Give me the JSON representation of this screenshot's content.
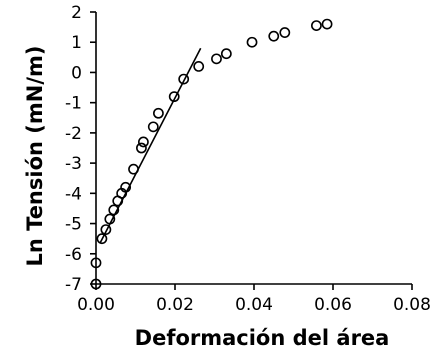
{
  "chart_data": {
    "type": "scatter",
    "xlabel": "Deformación del área",
    "ylabel": "Ln Tensión (mN/m)",
    "xlim": [
      0,
      0.08
    ],
    "ylim": [
      -7,
      2
    ],
    "x_ticks": [
      0,
      0.02,
      0.04,
      0.06,
      0.08
    ],
    "x_tick_labels": [
      "0.00",
      "0.02",
      "0.04",
      "0.06",
      "0.08"
    ],
    "y_ticks": [
      -7,
      -6,
      -5,
      -4,
      -3,
      -2,
      -1,
      0,
      1,
      2
    ],
    "y_tick_labels": [
      "-7",
      "-6",
      "-5",
      "-4",
      "-3",
      "-2",
      "-1",
      "0",
      "1",
      "2"
    ],
    "grid": false,
    "legend": false,
    "series": [
      {
        "type": "scatter",
        "marker": "open-circle",
        "points": [
          [
            0.0,
            -7.0
          ],
          [
            0.0,
            -6.3
          ],
          [
            0.0015,
            -5.5
          ],
          [
            0.0025,
            -5.2
          ],
          [
            0.0035,
            -4.85
          ],
          [
            0.0045,
            -4.55
          ],
          [
            0.0055,
            -4.25
          ],
          [
            0.0065,
            -4.0
          ],
          [
            0.0075,
            -3.8
          ],
          [
            0.0095,
            -3.2
          ],
          [
            0.0115,
            -2.5
          ],
          [
            0.012,
            -2.3
          ],
          [
            0.0145,
            -1.8
          ],
          [
            0.0158,
            -1.35
          ],
          [
            0.0198,
            -0.8
          ],
          [
            0.0222,
            -0.22
          ],
          [
            0.026,
            0.2
          ],
          [
            0.0305,
            0.45
          ],
          [
            0.033,
            0.62
          ],
          [
            0.0395,
            1.0
          ],
          [
            0.045,
            1.2
          ],
          [
            0.0478,
            1.32
          ],
          [
            0.0558,
            1.55
          ],
          [
            0.0585,
            1.6
          ]
        ]
      },
      {
        "type": "line",
        "points": [
          [
            0.001,
            -5.65
          ],
          [
            0.0265,
            0.8
          ]
        ]
      }
    ]
  }
}
